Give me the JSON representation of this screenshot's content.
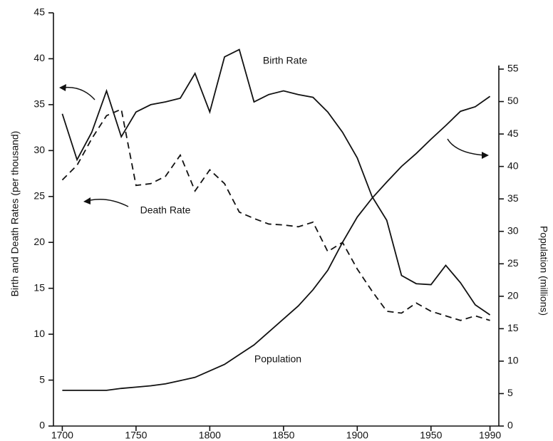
{
  "chart_data": {
    "type": "line",
    "y_label": "Birth and Death Rates (per thousand)",
    "y2_label": "Population (millions)",
    "x": [
      1700,
      1710,
      1720,
      1730,
      1740,
      1750,
      1760,
      1770,
      1780,
      1790,
      1800,
      1810,
      1820,
      1830,
      1840,
      1850,
      1860,
      1870,
      1880,
      1890,
      1900,
      1910,
      1920,
      1930,
      1940,
      1950,
      1960,
      1970,
      1980,
      1990
    ],
    "series": [
      {
        "name": "Birth Rate",
        "color": "#111111",
        "dash": false,
        "values": [
          34,
          29,
          32,
          36.5,
          31.5,
          34.2,
          35,
          35.3,
          35.7,
          38.4,
          34.2,
          40.2,
          41,
          35.3,
          36.1,
          36.5,
          36.1,
          35.8,
          34.2,
          32,
          29.2,
          25,
          22.4,
          16.4,
          15.5,
          15.4,
          17.5,
          15.6,
          13.2,
          12.1
        ]
      },
      {
        "name": "Death Rate",
        "color": "#111111",
        "dash": true,
        "values": [
          26.8,
          28.4,
          31.3,
          33.8,
          34.5,
          26.2,
          26.4,
          27.2,
          29.5,
          25.6,
          27.9,
          26.4,
          23.3,
          22.6,
          22,
          21.9,
          21.7,
          22.2,
          19,
          20,
          17.1,
          14.7,
          12.5,
          12.3,
          13.4,
          12.5,
          12,
          11.5,
          12,
          11.5
        ]
      },
      {
        "name": "Population",
        "color": "#111111",
        "dash": false,
        "axis": "y2",
        "values": [
          5.5,
          5.5,
          5.5,
          5.5,
          5.8,
          6,
          6.2,
          6.5,
          7,
          7.5,
          8.5,
          9.5,
          11,
          12.5,
          14.5,
          16.5,
          18.5,
          21,
          24,
          28.3,
          32.2,
          35.1,
          37.6,
          40,
          42,
          44.2,
          46.3,
          48.5,
          49.2,
          50.8
        ]
      }
    ],
    "xlim": [
      1694,
      1996
    ],
    "xticks": [
      1700,
      1750,
      1800,
      1850,
      1900,
      1950,
      1990
    ],
    "ylim": [
      0,
      45
    ],
    "yticks": [
      0,
      5,
      10,
      15,
      20,
      25,
      30,
      35,
      40,
      45
    ],
    "y2lim": [
      0,
      55
    ],
    "y2ticks": [
      0,
      5,
      10,
      15,
      20,
      25,
      30,
      35,
      40,
      45,
      50,
      55
    ]
  }
}
